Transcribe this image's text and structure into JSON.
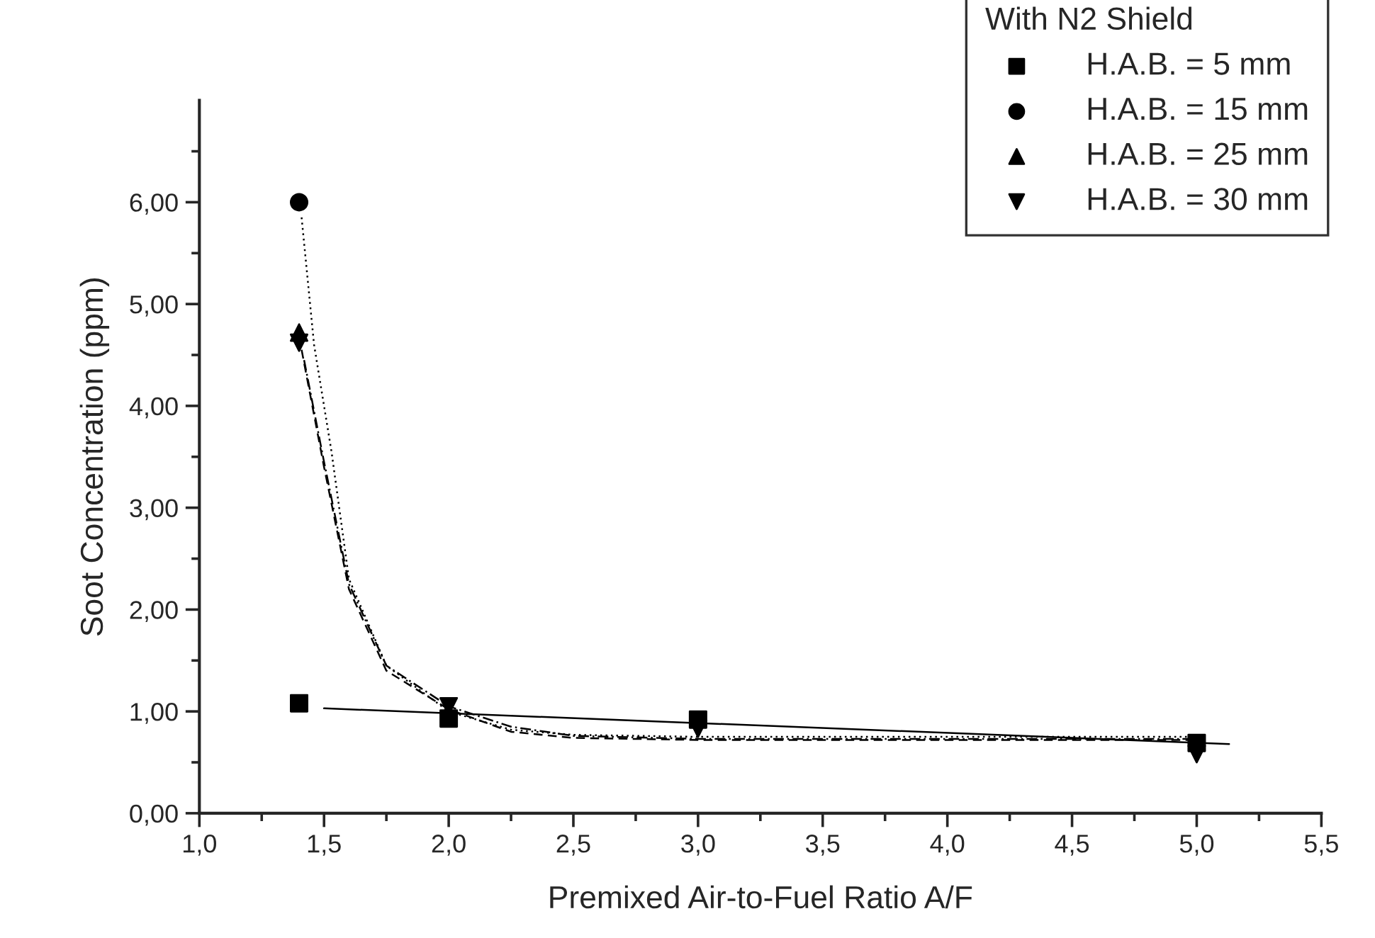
{
  "chart_data": {
    "type": "scatter",
    "xlabel": "Premixed Air-to-Fuel Ratio A/F",
    "ylabel": "Soot Concentration (ppm)",
    "legend_title": "With N2 Shield",
    "legend": "top right",
    "grid": false,
    "xlim": [
      1.0,
      5.5
    ],
    "ylim": [
      0,
      7.0
    ],
    "xticks": [
      {
        "value": 1.0,
        "label": "1,0"
      },
      {
        "value": 1.25,
        "label": null
      },
      {
        "value": 1.5,
        "label": "1,5"
      },
      {
        "value": 1.75,
        "label": null
      },
      {
        "value": 2.0,
        "label": "2,0"
      },
      {
        "value": 2.25,
        "label": null
      },
      {
        "value": 2.5,
        "label": "2,5"
      },
      {
        "value": 2.75,
        "label": null
      },
      {
        "value": 3.0,
        "label": "3,0"
      },
      {
        "value": 3.25,
        "label": null
      },
      {
        "value": 3.5,
        "label": "3,5"
      },
      {
        "value": 3.75,
        "label": null
      },
      {
        "value": 4.0,
        "label": "4,0"
      },
      {
        "value": 4.25,
        "label": null
      },
      {
        "value": 4.5,
        "label": "4,5"
      },
      {
        "value": 4.75,
        "label": null
      },
      {
        "value": 5.0,
        "label": "5,0"
      },
      {
        "value": 5.25,
        "label": null
      },
      {
        "value": 5.5,
        "label": "5,5"
      }
    ],
    "yticks": [
      {
        "value": 0,
        "label": "0,00"
      },
      {
        "value": 0.5,
        "label": null
      },
      {
        "value": 1,
        "label": "1,00"
      },
      {
        "value": 1.5,
        "label": null
      },
      {
        "value": 2,
        "label": "2,00"
      },
      {
        "value": 2.5,
        "label": null
      },
      {
        "value": 3,
        "label": "3,00"
      },
      {
        "value": 3.5,
        "label": null
      },
      {
        "value": 4,
        "label": "4,00"
      },
      {
        "value": 4.5,
        "label": null
      },
      {
        "value": 5,
        "label": "5,00"
      },
      {
        "value": 5.5,
        "label": null
      },
      {
        "value": 6,
        "label": "6,00"
      },
      {
        "value": 6.5,
        "label": null
      }
    ],
    "series": [
      {
        "name": "H.A.B. = 5 mm",
        "marker": "square",
        "color": "#000000",
        "x": [
          1.4,
          2.0,
          3.0,
          5.0
        ],
        "values": [
          1.08,
          0.93,
          0.92,
          0.69
        ]
      },
      {
        "name": "H.A.B. = 15 mm",
        "marker": "circle",
        "color": "#000000",
        "x": [
          1.4
        ],
        "values": [
          6.0
        ]
      },
      {
        "name": "H.A.B. = 25 mm",
        "marker": "triangle",
        "color": "#000000",
        "x": [
          1.4
        ],
        "values": [
          4.72
        ]
      },
      {
        "name": "H.A.B. = 30 mm",
        "marker": "triangle_down",
        "color": "#000000",
        "x": [
          1.4,
          2.0,
          3.0,
          5.0
        ],
        "values": [
          4.62,
          1.05,
          0.83,
          0.58
        ]
      },
      {
        "type": "line",
        "line_style": "solid",
        "color": "#000000",
        "x": [
          1.5,
          5.13
        ],
        "values": [
          1.03,
          0.68
        ]
      },
      {
        "type": "line",
        "line_style": "dotted",
        "color": "#000000",
        "x": [
          1.41,
          1.46,
          1.53,
          1.6,
          1.75,
          2.0,
          2.25,
          2.5,
          3.0,
          5.0
        ],
        "values": [
          5.85,
          4.6,
          3.55,
          2.3,
          1.45,
          1.0,
          0.82,
          0.77,
          0.75,
          0.75
        ]
      },
      {
        "type": "line",
        "line_style": "dashed",
        "color": "#000000",
        "x": [
          1.41,
          1.5,
          1.6,
          1.75,
          2.0,
          2.25,
          2.5,
          3.0,
          5.0
        ],
        "values": [
          4.55,
          3.4,
          2.2,
          1.4,
          1.02,
          0.8,
          0.74,
          0.72,
          0.72
        ]
      },
      {
        "type": "line",
        "line_style": "dashdot",
        "color": "#000000",
        "x": [
          1.42,
          1.5,
          1.6,
          1.75,
          2.0,
          2.25,
          2.5,
          3.0,
          5.0
        ],
        "values": [
          4.45,
          3.45,
          2.25,
          1.45,
          1.05,
          0.85,
          0.76,
          0.73,
          0.73
        ]
      }
    ]
  }
}
